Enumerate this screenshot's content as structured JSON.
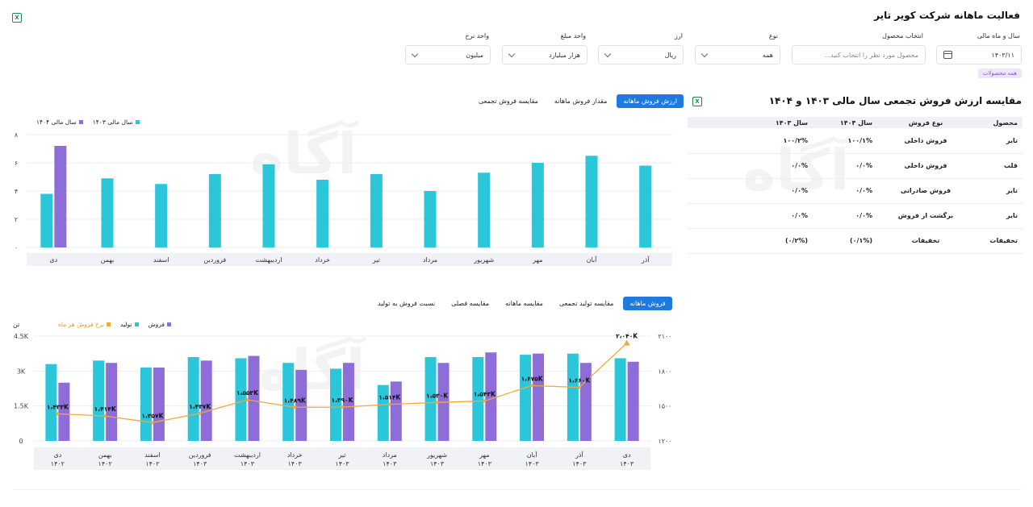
{
  "page": {
    "title": "فعالیت ماهانه شرکت کویر تایر",
    "all_products_badge": "همه محصولات"
  },
  "filters": {
    "year_month": {
      "label": "سال و ماه مالی",
      "value": "۱۴۰۳/۱۱"
    },
    "product": {
      "label": "انتخاب محصول",
      "placeholder": "محصول مورد نظر را انتخاب کنید..."
    },
    "type": {
      "label": "نوع",
      "value": "همه"
    },
    "currency": {
      "label": "ارز",
      "value": "ریال"
    },
    "amount_unit": {
      "label": "واحد مبلغ",
      "value": "هزار میلیارد"
    },
    "rate_unit": {
      "label": "واحد نرخ",
      "value": "میلیون"
    }
  },
  "table": {
    "title": "مقایسه ارزش فروش تجمعی سال مالی ۱۴۰۳ و ۱۴۰۴",
    "headers": [
      "محصول",
      "نوع فروش",
      "سال ۱۴۰۴",
      "سال ۱۴۰۳"
    ],
    "rows": [
      [
        "تایر",
        "فروش داخلی",
        "۱۰۰/۱%",
        "۱۰۰/۲%"
      ],
      [
        "قلب",
        "فروش داخلی",
        "۰/۰%",
        "۰/۰%"
      ],
      [
        "تایر",
        "فروش صادراتی",
        "۰/۰%",
        "۰/۰%"
      ],
      [
        "تایر",
        "برگشت از فروش",
        "۰/۰%",
        "۰/۰%"
      ],
      [
        "تخفیفات",
        "تخفیفات",
        "(۰/۱%)",
        "(۰/۲%)"
      ]
    ]
  },
  "top_chart": {
    "tabs": [
      "ارزش فروش ماهانه",
      "مقدار فروش ماهانه",
      "مقایسه فروش تجمعی"
    ],
    "active_tab": 0,
    "colors": {
      "1403": "#2cc6da",
      "1404": "#8e6dd8"
    }
  },
  "bottom_chart": {
    "tabs": [
      "فروش ماهانه",
      "مقایسه تولید تجمعی",
      "مقایسه ماهانه",
      "مقایسه فصلی",
      "نسبت فروش به تولید"
    ],
    "active_tab": 0,
    "colors": {
      "production": "#2cc6da",
      "sales": "#8e6dd8",
      "rate": "#f2a93b"
    }
  },
  "chart_data": [
    {
      "type": "bar",
      "categories": [
        "آذر",
        "آبان",
        "مهر",
        "شهریور",
        "مرداد",
        "تیر",
        "خرداد",
        "اردیبهشت",
        "فروردین",
        "اسفند",
        "بهمن",
        "دی"
      ],
      "series": [
        {
          "name": "سال مالی ۱۴۰۳",
          "values": [
            5.8,
            6.5,
            6.0,
            5.3,
            4.0,
            5.2,
            4.8,
            5.9,
            5.2,
            4.5,
            4.9,
            3.8
          ]
        },
        {
          "name": "سال مالی ۱۴۰۴",
          "values": [
            null,
            null,
            null,
            null,
            null,
            null,
            null,
            null,
            null,
            null,
            null,
            7.2
          ]
        }
      ],
      "yticks": [
        "۰",
        "۲",
        "۴",
        "۶",
        "۸"
      ],
      "ylim": [
        0,
        8
      ],
      "grid": true,
      "legend": "top-left"
    },
    {
      "type": "bar",
      "categories": [
        {
          "month": "دی",
          "year": "۱۴۰۲"
        },
        {
          "month": "بهمن",
          "year": "۱۴۰۲"
        },
        {
          "month": "اسفند",
          "year": "۱۴۰۲"
        },
        {
          "month": "فروردین",
          "year": "۱۴۰۳"
        },
        {
          "month": "اردیبهشت",
          "year": "۱۴۰۳"
        },
        {
          "month": "خرداد",
          "year": "۱۴۰۳"
        },
        {
          "month": "تیر",
          "year": "۱۴۰۳"
        },
        {
          "month": "مرداد",
          "year": "۱۴۰۳"
        },
        {
          "month": "شهریور",
          "year": "۱۴۰۳"
        },
        {
          "month": "مهر",
          "year": "۱۴۰۳"
        },
        {
          "month": "آبان",
          "year": "۱۴۰۳"
        },
        {
          "month": "آذر",
          "year": "۱۴۰۳"
        },
        {
          "month": "دی",
          "year": "۱۴۰۳"
        }
      ],
      "series": [
        {
          "name": "تولید",
          "values": [
            3300,
            3450,
            3150,
            3600,
            3550,
            3350,
            3100,
            2400,
            3600,
            3600,
            3700,
            3750,
            3550
          ]
        },
        {
          "name": "فروش",
          "values": [
            2500,
            3350,
            3150,
            3450,
            3650,
            3050,
            3350,
            2550,
            3350,
            3800,
            3750,
            3350,
            3400
          ]
        },
        {
          "name": "نرخ فروش هر ماه",
          "values": [
            1433,
            1414,
            1357,
            1437,
            1553,
            1489,
            1490,
            1514,
            1530,
            1543,
            1675,
            1660,
            2040
          ],
          "labels": [
            "۱،۴۳۳K",
            "۱،۴۱۴K",
            "۱،۳۵۷K",
            "۱،۴۳۷K",
            "۱،۵۵۳K",
            "۱،۴۸۹K",
            "۱،۴۹۰K",
            "۱،۵۱۴K",
            "۱،۵۳۰K",
            "۱،۵۴۳K",
            "۱،۶۷۵K",
            "۱،۶۶۰K",
            "۲،۰۴۰K"
          ]
        }
      ],
      "y_left": {
        "label": "تن",
        "ticks": [
          "0",
          "1.5K",
          "3K",
          "4.5K"
        ],
        "range": [
          0,
          4500
        ]
      },
      "y_right": {
        "ticks": [
          "۱۲۰۰",
          "۱۵۰۰",
          "۱۸۰۰",
          "۲۱۰۰"
        ],
        "range": [
          1200,
          2100
        ]
      },
      "legend": "top-left",
      "grid": true
    }
  ]
}
